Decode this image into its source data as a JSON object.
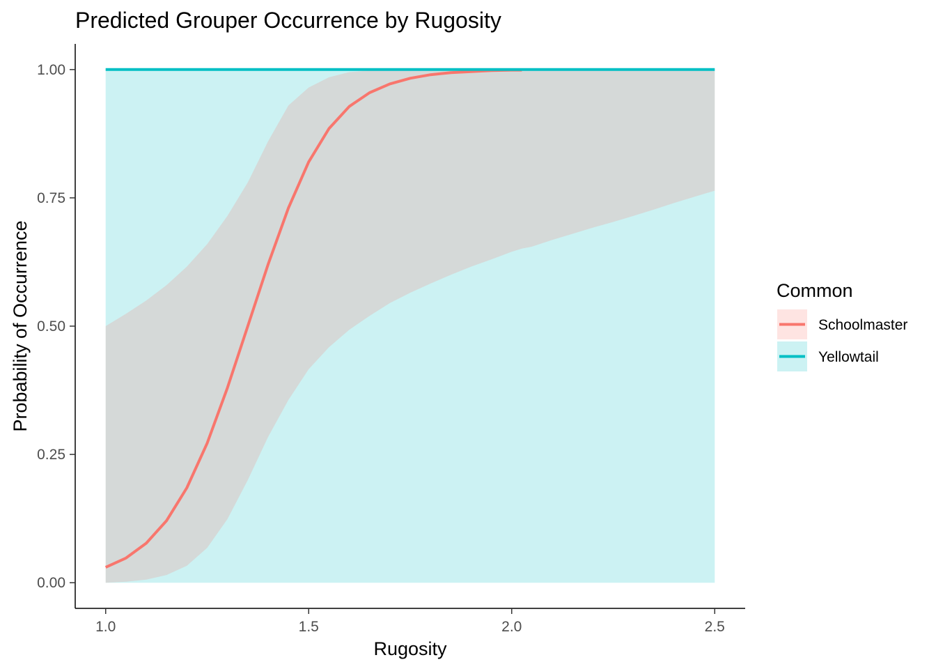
{
  "chart_data": {
    "type": "line",
    "title": "Predicted Grouper Occurrence by Rugosity",
    "xlabel": "Rugosity",
    "ylabel": "Probability of Occurrence",
    "xlim": [
      0.925,
      2.575
    ],
    "ylim": [
      -0.05,
      1.05
    ],
    "x_ticks": [
      1.0,
      1.5,
      2.0,
      2.5
    ],
    "x_tick_labels": [
      "1.0",
      "1.5",
      "2.0",
      "2.5"
    ],
    "y_ticks": [
      0.0,
      0.25,
      0.5,
      0.75,
      1.0
    ],
    "y_tick_labels": [
      "0.00",
      "0.25",
      "0.50",
      "0.75",
      "1.00"
    ],
    "grid": false,
    "legend": {
      "title": "Common",
      "placement": "right",
      "entries": [
        "Schoolmaster",
        "Yellowtail"
      ]
    },
    "series": [
      {
        "name": "Schoolmaster",
        "color": "#F8766D",
        "x": [
          1.0,
          1.05,
          1.1,
          1.15,
          1.2,
          1.25,
          1.3,
          1.35,
          1.4,
          1.45,
          1.5,
          1.55,
          1.6,
          1.65,
          1.7,
          1.75,
          1.8,
          1.85,
          1.9,
          1.95,
          2.0,
          2.025
        ],
        "y": [
          0.03,
          0.048,
          0.077,
          0.121,
          0.185,
          0.272,
          0.38,
          0.5,
          0.62,
          0.73,
          0.82,
          0.885,
          0.928,
          0.955,
          0.972,
          0.983,
          0.99,
          0.994,
          0.996,
          0.998,
          0.999,
          0.999
        ],
        "lower": [
          0.0,
          0.002,
          0.006,
          0.015,
          0.033,
          0.068,
          0.124,
          0.2,
          0.284,
          0.356,
          0.416,
          0.459,
          0.493,
          0.52,
          0.545,
          0.565,
          0.583,
          0.6,
          0.616,
          0.63,
          0.645,
          0.651
        ],
        "upper": [
          0.5,
          0.524,
          0.55,
          0.58,
          0.616,
          0.66,
          0.715,
          0.78,
          0.86,
          0.93,
          0.965,
          0.985,
          0.995,
          0.998,
          0.999,
          1.0,
          1.0,
          1.0,
          1.0,
          1.0,
          1.0,
          1.0
        ],
        "ribbon_extension_x": [
          2.05,
          2.1,
          2.15,
          2.2,
          2.25,
          2.3,
          2.35,
          2.4,
          2.45,
          2.5
        ],
        "ribbon_extension_lower": [
          0.655,
          0.668,
          0.68,
          0.692,
          0.703,
          0.715,
          0.727,
          0.74,
          0.752,
          0.764
        ],
        "ribbon_extension_upper": [
          1.0,
          1.0,
          1.0,
          1.0,
          1.0,
          1.0,
          1.0,
          1.0,
          1.0,
          1.0
        ]
      },
      {
        "name": "Yellowtail",
        "color": "#00BFC4",
        "x": [
          1.0,
          2.5
        ],
        "y": [
          1.0,
          1.0
        ],
        "lower": [
          0.0,
          0.0
        ],
        "upper": [
          1.0,
          1.0
        ]
      }
    ]
  }
}
